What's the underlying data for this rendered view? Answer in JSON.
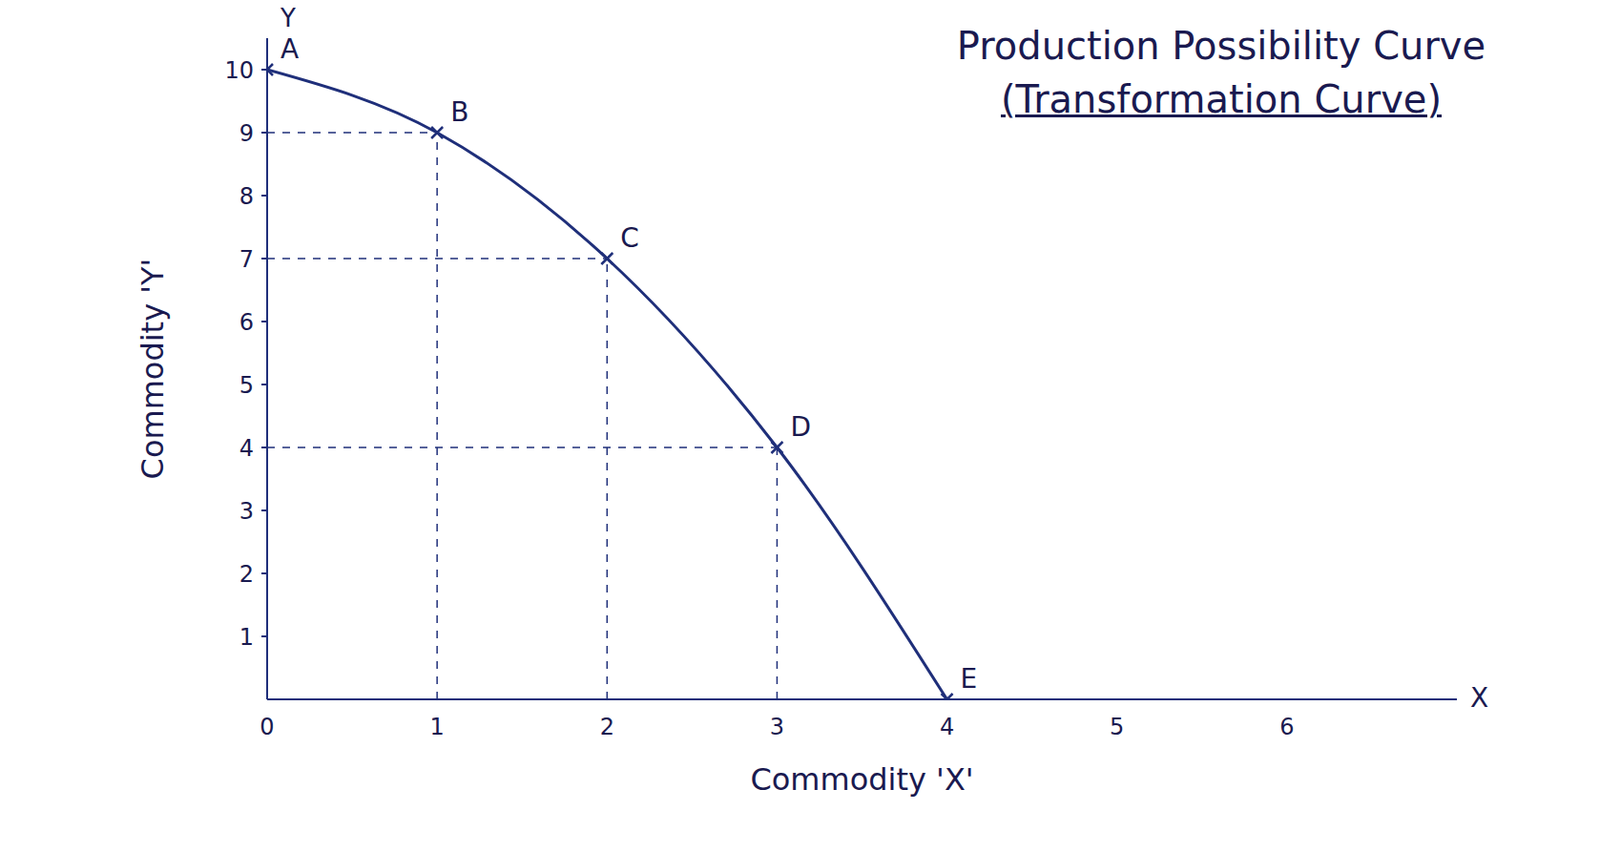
{
  "chart_data": {
    "type": "line",
    "title": "Production Possibility Curve",
    "subtitle": "(Transformation Curve)",
    "x_label": "Commodity 'X'",
    "y_label": "Commodity 'Y'",
    "x_arrow_label": "X",
    "y_arrow_label": "Y",
    "x": [
      0,
      1,
      2,
      3,
      4
    ],
    "values": [
      10,
      9,
      7,
      4,
      0
    ],
    "point_labels": [
      "A",
      "B",
      "C",
      "D",
      "E"
    ],
    "color": "#1f2f7a",
    "xlim": [
      0,
      7
    ],
    "ylim": [
      0,
      10.5
    ],
    "xticks": [
      0,
      1,
      2,
      3,
      4,
      5,
      6
    ],
    "yticks": [
      1,
      2,
      3,
      4,
      5,
      6,
      7,
      8,
      9,
      10
    ],
    "marker": "x",
    "line_style": "solid",
    "grid": false
  }
}
